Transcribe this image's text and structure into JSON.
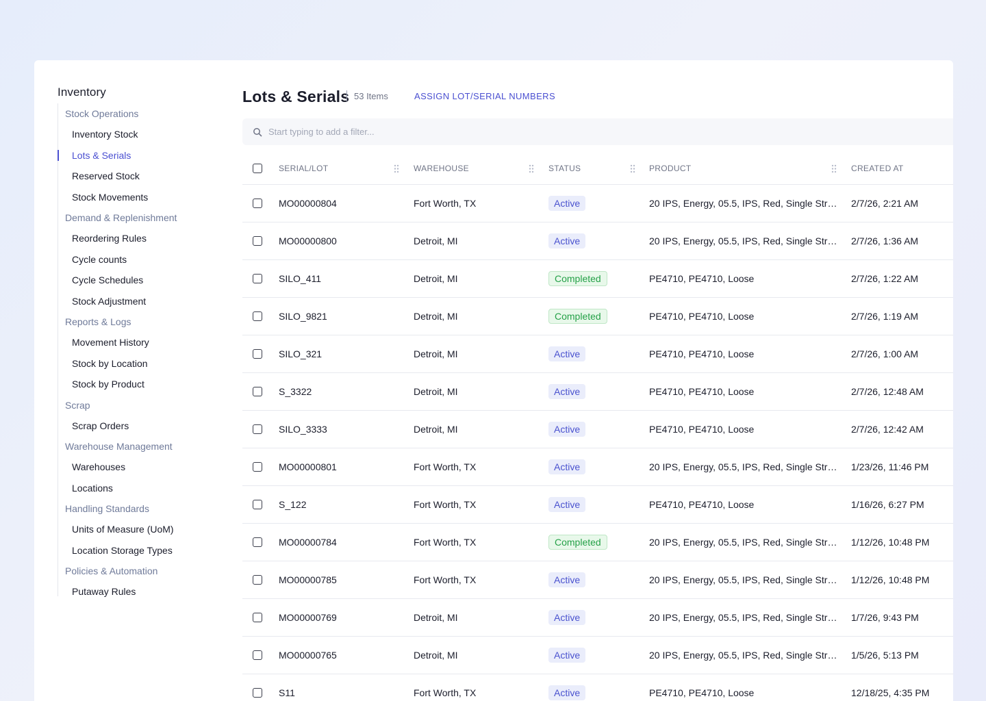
{
  "sidebar": {
    "title": "Inventory",
    "groups": [
      {
        "label": "Stock Operations",
        "items": [
          "Inventory Stock",
          "Lots & Serials",
          "Reserved Stock",
          "Stock Movements"
        ]
      },
      {
        "label": "Demand & Replenishment",
        "items": [
          "Reordering Rules",
          "Cycle counts",
          "Cycle Schedules",
          "Stock Adjustment"
        ]
      },
      {
        "label": "Reports & Logs",
        "items": [
          "Movement History",
          "Stock by Location",
          "Stock by Product"
        ]
      },
      {
        "label": "Scrap",
        "items": [
          "Scrap Orders"
        ]
      },
      {
        "label": "Warehouse Management",
        "items": [
          "Warehouses",
          "Locations"
        ]
      },
      {
        "label": "Handling Standards",
        "items": [
          "Units of Measure (UoM)",
          "Location Storage Types"
        ]
      },
      {
        "label": "Policies & Automation",
        "items": [
          "Putaway Rules"
        ]
      }
    ],
    "active_item": "Lots & Serials"
  },
  "header": {
    "title": "Lots & Serials",
    "count": "53 Items",
    "assign_label": "ASSIGN LOT/SERIAL NUMBERS"
  },
  "filter": {
    "placeholder": "Start typing to add a filter..."
  },
  "table": {
    "columns": {
      "serial": "SERIAL/LOT",
      "warehouse": "WAREHOUSE",
      "status": "STATUS",
      "product": "PRODUCT",
      "created": "CREATED AT"
    },
    "rows": [
      {
        "serial": "MO00000804",
        "warehouse": "Fort Worth, TX",
        "status": "Active",
        "product": "20 IPS, Energy, 05.5, IPS, Red, Single Stripe...",
        "created": "2/7/26, 2:21 AM"
      },
      {
        "serial": "MO00000800",
        "warehouse": "Detroit, MI",
        "status": "Active",
        "product": "20 IPS, Energy, 05.5, IPS, Red, Single Stripe...",
        "created": "2/7/26, 1:36 AM"
      },
      {
        "serial": "SILO_411",
        "warehouse": "Detroit, MI",
        "status": "Completed",
        "product": "PE4710, PE4710, Loose",
        "created": "2/7/26, 1:22 AM"
      },
      {
        "serial": "SILO_9821",
        "warehouse": "Detroit, MI",
        "status": "Completed",
        "product": "PE4710, PE4710, Loose",
        "created": "2/7/26, 1:19 AM"
      },
      {
        "serial": "SILO_321",
        "warehouse": "Detroit, MI",
        "status": "Active",
        "product": "PE4710, PE4710, Loose",
        "created": "2/7/26, 1:00 AM"
      },
      {
        "serial": "S_3322",
        "warehouse": "Detroit, MI",
        "status": "Active",
        "product": "PE4710, PE4710, Loose",
        "created": "2/7/26, 12:48 AM"
      },
      {
        "serial": "SILO_3333",
        "warehouse": "Detroit, MI",
        "status": "Active",
        "product": "PE4710, PE4710, Loose",
        "created": "2/7/26, 12:42 AM"
      },
      {
        "serial": "MO00000801",
        "warehouse": "Fort Worth, TX",
        "status": "Active",
        "product": "20 IPS, Energy, 05.5, IPS, Red, Single Stripe...",
        "created": "1/23/26, 11:46 PM"
      },
      {
        "serial": "S_122",
        "warehouse": "Fort Worth, TX",
        "status": "Active",
        "product": "PE4710, PE4710, Loose",
        "created": "1/16/26, 6:27 PM"
      },
      {
        "serial": "MO00000784",
        "warehouse": "Fort Worth, TX",
        "status": "Completed",
        "product": "20 IPS, Energy, 05.5, IPS, Red, Single Stripe...",
        "created": "1/12/26, 10:48 PM"
      },
      {
        "serial": "MO00000785",
        "warehouse": "Fort Worth, TX",
        "status": "Active",
        "product": "20 IPS, Energy, 05.5, IPS, Red, Single Stripe...",
        "created": "1/12/26, 10:48 PM"
      },
      {
        "serial": "MO00000769",
        "warehouse": "Detroit, MI",
        "status": "Active",
        "product": "20 IPS, Energy, 05.5, IPS, Red, Single Stripe...",
        "created": "1/7/26, 9:43 PM"
      },
      {
        "serial": "MO00000765",
        "warehouse": "Detroit, MI",
        "status": "Active",
        "product": "20 IPS, Energy, 05.5, IPS, Red, Single Stripe...",
        "created": "1/5/26, 5:13 PM"
      },
      {
        "serial": "S11",
        "warehouse": "Fort Worth, TX",
        "status": "Active",
        "product": "PE4710, PE4710, Loose",
        "created": "12/18/25, 4:35 PM"
      }
    ]
  },
  "colors": {
    "accent": "#4a4fd1",
    "active_badge_bg": "#eaedfb",
    "completed_badge_bg": "#e8f8ea",
    "completed_text": "#25a148"
  }
}
